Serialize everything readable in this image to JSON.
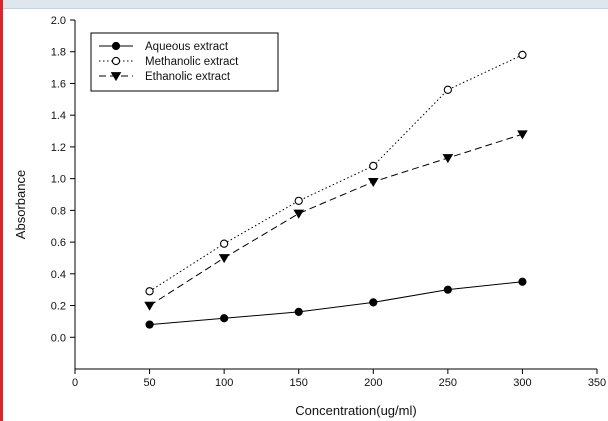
{
  "colors": {
    "frame_top": "#dfe6ee",
    "frame_left_accent": "#d8262b",
    "series": "#000000"
  },
  "chart_data": {
    "type": "line",
    "title": "",
    "xlabel": "Concentration(ug/ml)",
    "ylabel": "Absorbance",
    "xlim": [
      0,
      350
    ],
    "ylim": [
      -0.2,
      2.0
    ],
    "xticks": [
      0,
      50,
      100,
      150,
      200,
      250,
      300,
      350
    ],
    "xtick_labels": [
      "0",
      "50",
      "100",
      "150",
      "200",
      "250",
      "300",
      "350"
    ],
    "yticks": [
      0.0,
      0.2,
      0.4,
      0.6,
      0.8,
      1.0,
      1.2,
      1.4,
      1.6,
      1.8,
      2.0
    ],
    "ytick_labels": [
      "0.0",
      "0.2",
      "0.4",
      "0.6",
      "0.8",
      "1.0",
      "1.2",
      "1.4",
      "1.6",
      "1.8",
      "2.0"
    ],
    "grid": false,
    "legend_position": "top-left",
    "x": [
      50,
      100,
      150,
      200,
      250,
      300
    ],
    "series": [
      {
        "name": "Aqueous extract",
        "values": [
          0.08,
          0.12,
          0.16,
          0.22,
          0.3,
          0.35
        ],
        "line_style": "solid",
        "marker": "filled-circle"
      },
      {
        "name": "Methanolic extract",
        "values": [
          0.29,
          0.59,
          0.86,
          1.08,
          1.56,
          1.78
        ],
        "line_style": "dotted",
        "marker": "open-circle"
      },
      {
        "name": "Ethanolic extract",
        "values": [
          0.2,
          0.5,
          0.78,
          0.98,
          1.13,
          1.28
        ],
        "line_style": "dashed",
        "marker": "filled-triangle-down"
      }
    ]
  }
}
